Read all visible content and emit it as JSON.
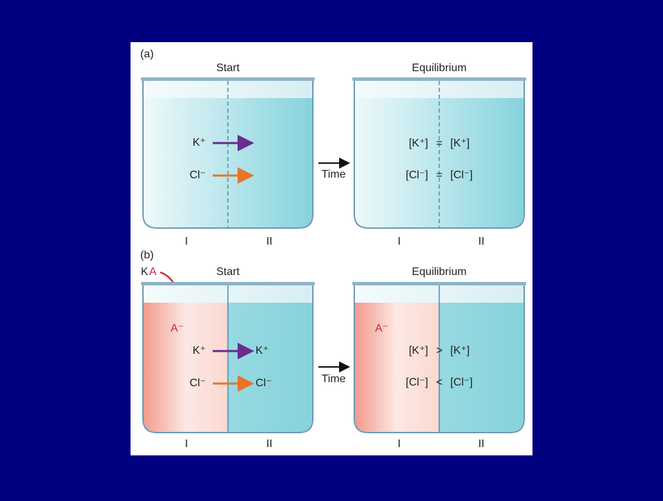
{
  "panels": [
    {
      "label": "(a)",
      "start": {
        "title": "Start",
        "ions": [
          "K⁺",
          "Cl⁻"
        ],
        "compartments": [
          "I",
          "II"
        ]
      },
      "arrow_label": "Time",
      "equilibrium": {
        "title": "Equilibrium",
        "equations": [
          {
            "left": "[K⁺]",
            "op": "=",
            "right": "[K⁺]"
          },
          {
            "left": "[Cl⁻]",
            "op": "=",
            "right": "[Cl⁻]"
          }
        ],
        "compartments": [
          "I",
          "II"
        ]
      }
    },
    {
      "label": "(b)",
      "added": {
        "cation": "K",
        "anion": "A"
      },
      "start": {
        "title": "Start",
        "anion": "A⁻",
        "ions": [
          "K⁺",
          "Cl⁻"
        ],
        "ions_moved": [
          "K⁺",
          "Cl⁻"
        ],
        "compartments": [
          "I",
          "II"
        ]
      },
      "arrow_label": "Time",
      "equilibrium": {
        "title": "Equilibrium",
        "anion": "A⁻",
        "equations": [
          {
            "left": "[K⁺]",
            "op": ">",
            "right": "[K⁺]"
          },
          {
            "left": "[Cl⁻]",
            "op": "<",
            "right": "[Cl⁻]"
          }
        ],
        "compartments": [
          "I",
          "II"
        ]
      }
    }
  ]
}
